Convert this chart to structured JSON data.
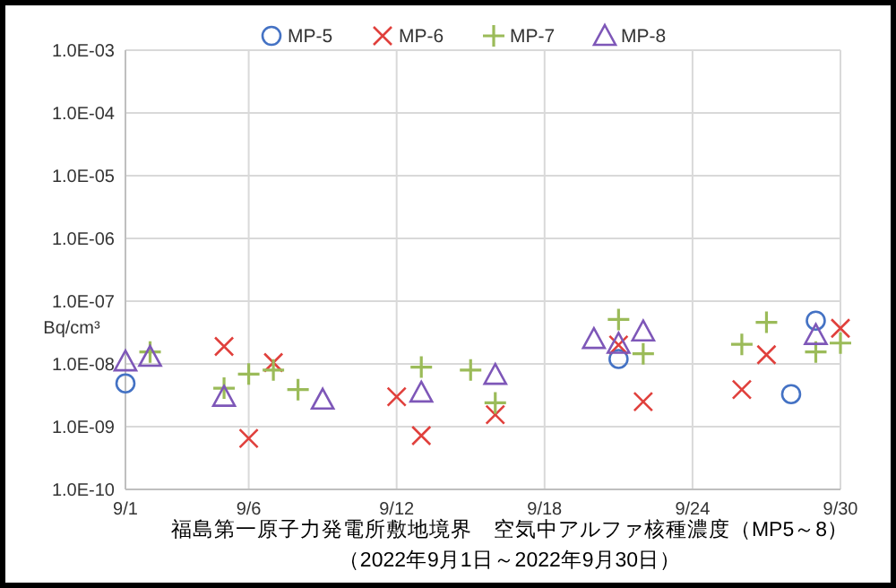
{
  "chart_data": {
    "type": "scatter",
    "title": "福島第一原子力発電所敷地境界　空気中アルファ核種濃度（MP5～8）",
    "subtitle": "（2022年9月1日～2022年9月30日）",
    "ylabel": "Bq/cm³",
    "log": "y",
    "grid": true,
    "legend": "top",
    "xlim": [
      "2022-09-01",
      "2022-09-30"
    ],
    "xticks": [
      {
        "value": "2022-09-01",
        "label": "9/1"
      },
      {
        "value": "2022-09-06",
        "label": "9/6"
      },
      {
        "value": "2022-09-12",
        "label": "9/12"
      },
      {
        "value": "2022-09-18",
        "label": "9/18"
      },
      {
        "value": "2022-09-24",
        "label": "9/24"
      },
      {
        "value": "2022-09-30",
        "label": "9/30"
      }
    ],
    "ylim": [
      1e-10,
      0.001
    ],
    "yticks": [
      {
        "value": 1e-10,
        "label": "1.0E-10"
      },
      {
        "value": 1e-09,
        "label": "1.0E-09"
      },
      {
        "value": 1e-08,
        "label": "1.0E-08"
      },
      {
        "value": 1e-07,
        "label": "1.0E-07"
      },
      {
        "value": 1e-06,
        "label": "1.0E-06"
      },
      {
        "value": 1e-05,
        "label": "1.0E-05"
      },
      {
        "value": 0.0001,
        "label": "1.0E-04"
      },
      {
        "value": 0.001,
        "label": "1.0E-03"
      }
    ],
    "series": [
      {
        "name": "MP-5",
        "color": "#4472c4",
        "marker": "circle",
        "x": [
          "2022-09-01",
          "2022-09-21",
          "2022-09-28",
          "2022-09-29"
        ],
        "values": [
          4.9e-09,
          1.2e-08,
          3.3e-09,
          4.9e-08
        ]
      },
      {
        "name": "MP-6",
        "color": "#e0403c",
        "marker": "x",
        "x": [
          "2022-09-05",
          "2022-09-06",
          "2022-09-07",
          "2022-09-12",
          "2022-09-13",
          "2022-09-16",
          "2022-09-21",
          "2022-09-22",
          "2022-09-26",
          "2022-09-27",
          "2022-09-30"
        ],
        "values": [
          1.9e-08,
          6.5e-10,
          1.05e-08,
          3e-09,
          7.2e-10,
          1.55e-09,
          2e-08,
          2.5e-09,
          3.9e-09,
          1.4e-08,
          3.7e-08
        ]
      },
      {
        "name": "MP-7",
        "color": "#9bbb59",
        "marker": "cross",
        "x": [
          "2022-09-02",
          "2022-09-05",
          "2022-09-06",
          "2022-09-07",
          "2022-09-08",
          "2022-09-13",
          "2022-09-15",
          "2022-09-16",
          "2022-09-21",
          "2022-09-22",
          "2022-09-26",
          "2022-09-27",
          "2022-09-29",
          "2022-09-30"
        ],
        "values": [
          1.55e-08,
          4.1e-09,
          6.9e-09,
          8e-09,
          3.9e-09,
          8.9e-09,
          8e-09,
          2.4e-09,
          5.1e-08,
          1.45e-08,
          2.05e-08,
          4.6e-08,
          1.55e-08,
          2.15e-08
        ]
      },
      {
        "name": "MP-8",
        "color": "#7e57b8",
        "marker": "triangle",
        "x": [
          "2022-09-01",
          "2022-09-02",
          "2022-09-05",
          "2022-09-09",
          "2022-09-13",
          "2022-09-16",
          "2022-09-20",
          "2022-09-21",
          "2022-09-22",
          "2022-09-29"
        ],
        "values": [
          1.1e-08,
          1.3e-08,
          3e-09,
          2.7e-09,
          3.5e-09,
          6.7e-09,
          2.5e-08,
          2.1e-08,
          3.3e-08,
          2.9e-08
        ]
      }
    ]
  }
}
